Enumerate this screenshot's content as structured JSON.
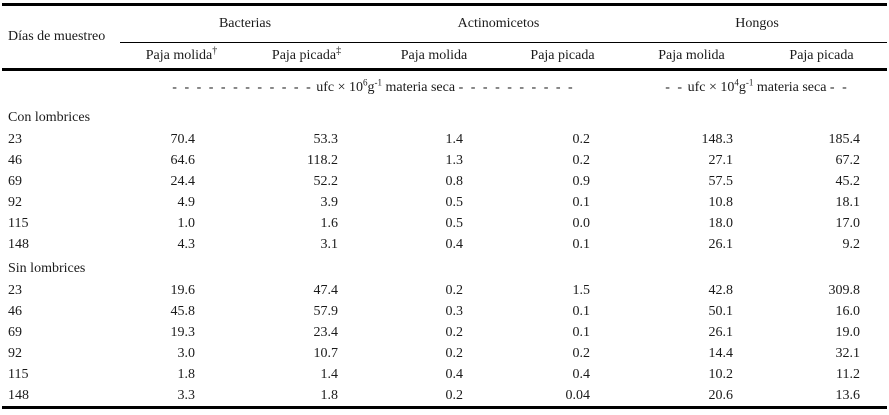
{
  "colors": {
    "background": "#ffffff",
    "text": "#1a1a1a",
    "rule": "#000000"
  },
  "table": {
    "header": {
      "row_label": "Días de muestreo",
      "groups": [
        {
          "label": "Bacterias",
          "cols": [
            {
              "label": "Paja molida",
              "mark": "†"
            },
            {
              "label": "Paja picada",
              "mark": "‡"
            }
          ]
        },
        {
          "label": "Actinomicetos",
          "cols": [
            {
              "label": "Paja molida",
              "mark": ""
            },
            {
              "label": "Paja picada",
              "mark": ""
            }
          ]
        },
        {
          "label": "Hongos",
          "cols": [
            {
              "label": "Paja molida",
              "mark": ""
            },
            {
              "label": "Paja picada",
              "mark": ""
            }
          ]
        }
      ]
    },
    "units": {
      "left": {
        "dashes_before": "- - - - - - - - - - - -",
        "base": "ufc × 10",
        "exp10": "6",
        "gram": "g",
        "gram_exp": "-1",
        "suffix": "materia seca",
        "dashes_after": "- - - - - - - - - -"
      },
      "right": {
        "dashes_before": "- -",
        "base": "ufc × 10",
        "exp10": "4",
        "gram": "g",
        "gram_exp": "-1",
        "suffix": "materia seca",
        "dashes_after": "- -"
      }
    },
    "sections": [
      {
        "label": "Con lombrices",
        "rows": [
          {
            "day": "23",
            "values": [
              "70.4",
              "53.3",
              "1.4",
              "0.2",
              "148.3",
              "185.4"
            ]
          },
          {
            "day": "46",
            "values": [
              "64.6",
              "118.2",
              "1.3",
              "0.2",
              "27.1",
              "67.2"
            ]
          },
          {
            "day": "69",
            "values": [
              "24.4",
              "52.2",
              "0.8",
              "0.9",
              "57.5",
              "45.2"
            ]
          },
          {
            "day": "92",
            "values": [
              "4.9",
              "3.9",
              "0.5",
              "0.1",
              "10.8",
              "18.1"
            ]
          },
          {
            "day": "115",
            "values": [
              "1.0",
              "1.6",
              "0.5",
              "0.0",
              "18.0",
              "17.0"
            ]
          },
          {
            "day": "148",
            "values": [
              "4.3",
              "3.1",
              "0.4",
              "0.1",
              "26.1",
              "9.2"
            ]
          }
        ]
      },
      {
        "label": "Sin lombrices",
        "rows": [
          {
            "day": "23",
            "values": [
              "19.6",
              "47.4",
              "0.2",
              "1.5",
              "42.8",
              "309.8"
            ]
          },
          {
            "day": "46",
            "values": [
              "45.8",
              "57.9",
              "0.3",
              "0.1",
              "50.1",
              "16.0"
            ]
          },
          {
            "day": "69",
            "values": [
              "19.3",
              "23.4",
              "0.2",
              "0.1",
              "26.1",
              "19.0"
            ]
          },
          {
            "day": "92",
            "values": [
              "3.0",
              "10.7",
              "0.2",
              "0.2",
              "14.4",
              "32.1"
            ]
          },
          {
            "day": "115",
            "values": [
              "1.8",
              "1.4",
              "0.4",
              "0.4",
              "10.2",
              "11.2"
            ]
          },
          {
            "day": "148",
            "values": [
              "3.3",
              "1.8",
              "0.2",
              "0.04",
              "20.6",
              "13.6"
            ]
          }
        ]
      }
    ]
  }
}
